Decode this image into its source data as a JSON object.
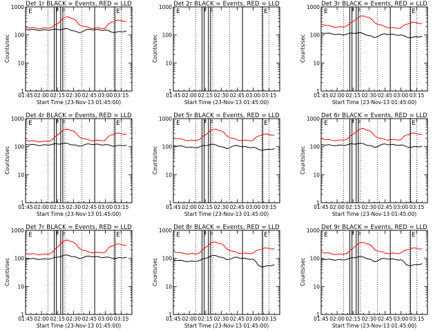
{
  "colors": {
    "events": "#000000",
    "lld": "#ff0000",
    "background": "#ffffff",
    "axes": "#000000"
  },
  "common": {
    "xlabel": "Start Time (23-Nov-13 01:45:00)",
    "ylabel": "Counts/sec",
    "x_ticks": [
      "01:45",
      "02:00",
      "02:15",
      "02:30",
      "02:45",
      "03:00",
      "03:15"
    ],
    "y_ticks": [
      "1",
      "10",
      "100",
      "1000"
    ],
    "marker_labels": [
      "E",
      "F",
      "F",
      "E"
    ]
  },
  "chart_data": [
    {
      "type": "line",
      "title": "Det 1r BLACK = Events, RED = LLD",
      "xlabel": "Start Time (23-Nov-13 01:45:00)",
      "ylabel": "Counts/sec",
      "ylim": [
        1,
        1000
      ],
      "yscale": "log",
      "x_minutes": [
        0,
        5,
        10,
        15,
        20,
        25,
        30,
        35,
        40,
        45,
        50,
        55,
        60,
        65,
        70,
        75,
        80,
        85,
        90,
        95
      ],
      "series": [
        {
          "name": "Events",
          "color": "#000000",
          "values": [
            160,
            155,
            150,
            148,
            150,
            155,
            158,
            160,
            165,
            140,
            120,
            140,
            160,
            155,
            150,
            150,
            130,
            125,
            130,
            140
          ]
        },
        {
          "name": "LLD",
          "color": "#ff0000",
          "values": [
            190,
            180,
            175,
            170,
            175,
            190,
            250,
            380,
            450,
            380,
            240,
            200,
            180,
            175,
            175,
            175,
            280,
            330,
            320,
            310
          ]
        }
      ]
    },
    {
      "type": "line",
      "title": "Det 2r BLACK = Events, RED = LLD",
      "xlabel": "Start Time (23-Nov-13 01:45:00)",
      "ylabel": "Counts/sec",
      "ylim": [
        1,
        1000
      ],
      "yscale": "log",
      "x_minutes": [],
      "series": []
    },
    {
      "type": "line",
      "title": "Det 3r BLACK = Events, RED = LLD",
      "xlabel": "Start Time (23-Nov-13 01:45:00)",
      "ylabel": "Counts/sec",
      "ylim": [
        1,
        1000
      ],
      "yscale": "log",
      "x_minutes": [
        0,
        5,
        10,
        15,
        20,
        25,
        30,
        35,
        40,
        45,
        50,
        55,
        60,
        65,
        70,
        75,
        80,
        85,
        90,
        95
      ],
      "series": [
        {
          "name": "Events",
          "color": "#000000",
          "values": [
            120,
            115,
            110,
            105,
            100,
            110,
            115,
            120,
            110,
            95,
            80,
            95,
            110,
            105,
            100,
            100,
            85,
            80,
            85,
            90
          ]
        },
        {
          "name": "LLD",
          "color": "#ff0000",
          "values": [
            250,
            220,
            200,
            190,
            190,
            220,
            300,
            430,
            480,
            420,
            280,
            230,
            200,
            180,
            175,
            180,
            240,
            280,
            270,
            260
          ]
        }
      ]
    },
    {
      "type": "line",
      "title": "Det 4r BLACK = Events, RED = LLD",
      "xlabel": "Start Time (23-Nov-13 01:45:00)",
      "ylabel": "Counts/sec",
      "ylim": [
        1,
        1000
      ],
      "yscale": "log",
      "x_minutes": [
        0,
        5,
        10,
        15,
        20,
        25,
        30,
        35,
        40,
        45,
        50,
        55,
        60,
        65,
        70,
        75,
        80,
        85,
        90,
        95
      ],
      "series": [
        {
          "name": "Events",
          "color": "#000000",
          "values": [
            120,
            118,
            115,
            112,
            115,
            120,
            125,
            130,
            128,
            115,
            105,
            115,
            125,
            120,
            118,
            118,
            110,
            105,
            110,
            115
          ]
        },
        {
          "name": "LLD",
          "color": "#ff0000",
          "values": [
            170,
            160,
            155,
            150,
            155,
            175,
            260,
            380,
            420,
            360,
            230,
            190,
            170,
            165,
            165,
            170,
            260,
            300,
            290,
            280
          ]
        }
      ]
    },
    {
      "type": "line",
      "title": "Det 5r BLACK = Events, RED = LLD",
      "xlabel": "Start Time (23-Nov-13 01:45:00)",
      "ylabel": "Counts/sec",
      "ylim": [
        1,
        1000
      ],
      "yscale": "log",
      "x_minutes": [
        0,
        5,
        10,
        15,
        20,
        25,
        30,
        35,
        40,
        45,
        50,
        55,
        60,
        65,
        70,
        75,
        80,
        85,
        90,
        95
      ],
      "series": [
        {
          "name": "Events",
          "color": "#000000",
          "values": [
            110,
            105,
            100,
            95,
            92,
            100,
            110,
            120,
            115,
            100,
            85,
            100,
            110,
            100,
            95,
            95,
            80,
            75,
            80,
            85
          ]
        },
        {
          "name": "LLD",
          "color": "#ff0000",
          "values": [
            210,
            190,
            175,
            165,
            165,
            185,
            260,
            380,
            420,
            370,
            250,
            200,
            175,
            165,
            165,
            170,
            240,
            280,
            270,
            260
          ]
        }
      ]
    },
    {
      "type": "line",
      "title": "Det 6r BLACK = Events, RED = LLD",
      "xlabel": "Start Time (23-Nov-13 01:45:00)",
      "ylabel": "Counts/sec",
      "ylim": [
        1,
        1000
      ],
      "yscale": "log",
      "x_minutes": [
        0,
        5,
        10,
        15,
        20,
        25,
        30,
        35,
        40,
        45,
        50,
        55,
        60,
        65,
        70,
        75,
        80,
        85,
        90,
        95
      ],
      "series": [
        {
          "name": "Events",
          "color": "#000000",
          "values": [
            120,
            115,
            112,
            110,
            112,
            118,
            125,
            130,
            125,
            110,
            95,
            110,
            125,
            118,
            115,
            115,
            100,
            95,
            100,
            105
          ]
        },
        {
          "name": "LLD",
          "color": "#ff0000",
          "values": [
            200,
            180,
            170,
            165,
            170,
            190,
            280,
            400,
            440,
            380,
            250,
            200,
            180,
            175,
            175,
            180,
            260,
            300,
            290,
            280
          ]
        }
      ]
    },
    {
      "type": "line",
      "title": "Det 7r BLACK = Events, RED = LLD",
      "xlabel": "Start Time (23-Nov-13 01:45:00)",
      "ylabel": "Counts/sec",
      "ylim": [
        1,
        1000
      ],
      "yscale": "log",
      "x_minutes": [
        0,
        5,
        10,
        15,
        20,
        25,
        30,
        35,
        40,
        45,
        50,
        55,
        60,
        65,
        70,
        75,
        80,
        85,
        90,
        95
      ],
      "series": [
        {
          "name": "Events",
          "color": "#000000",
          "values": [
            100,
            98,
            95,
            93,
            95,
            100,
            110,
            125,
            130,
            115,
            100,
            110,
            120,
            115,
            110,
            110,
            105,
            100,
            105,
            110
          ]
        },
        {
          "name": "LLD",
          "color": "#ff0000",
          "values": [
            150,
            145,
            140,
            138,
            140,
            160,
            250,
            400,
            450,
            380,
            240,
            190,
            165,
            160,
            160,
            165,
            270,
            320,
            310,
            300
          ]
        }
      ]
    },
    {
      "type": "line",
      "title": "Det 8r BLACK = Events, RED = LLD",
      "xlabel": "Start Time (23-Nov-13 01:45:00)",
      "ylabel": "Counts/sec",
      "ylim": [
        1,
        1000
      ],
      "yscale": "log",
      "x_minutes": [
        0,
        5,
        10,
        15,
        20,
        25,
        30,
        35,
        40,
        45,
        50,
        55,
        60,
        65,
        70,
        75,
        80,
        85,
        90,
        95
      ],
      "series": [
        {
          "name": "Events",
          "color": "#000000",
          "values": [
            90,
            85,
            80,
            78,
            78,
            85,
            100,
            120,
            125,
            110,
            90,
            100,
            110,
            100,
            95,
            95,
            55,
            50,
            55,
            60
          ]
        },
        {
          "name": "LLD",
          "color": "#ff0000",
          "values": [
            180,
            160,
            150,
            145,
            145,
            160,
            240,
            350,
            380,
            330,
            220,
            180,
            160,
            150,
            150,
            155,
            200,
            230,
            225,
            220
          ]
        }
      ]
    },
    {
      "type": "line",
      "title": "Det 9r BLACK = Events, RED = LLD",
      "xlabel": "Start Time (23-Nov-13 01:45:00)",
      "ylabel": "Counts/sec",
      "ylim": [
        1,
        1000
      ],
      "yscale": "log",
      "x_minutes": [
        0,
        5,
        10,
        15,
        20,
        25,
        30,
        35,
        40,
        45,
        50,
        55,
        60,
        65,
        70,
        75,
        80,
        85,
        90,
        95
      ],
      "series": [
        {
          "name": "Events",
          "color": "#000000",
          "values": [
            95,
            92,
            90,
            88,
            88,
            95,
            105,
            115,
            110,
            95,
            75,
            90,
            100,
            95,
            90,
            90,
            60,
            55,
            60,
            65
          ]
        },
        {
          "name": "LLD",
          "color": "#ff0000",
          "values": [
            170,
            155,
            145,
            140,
            140,
            155,
            230,
            340,
            370,
            320,
            210,
            175,
            155,
            150,
            150,
            155,
            200,
            230,
            225,
            220
          ]
        }
      ]
    }
  ]
}
